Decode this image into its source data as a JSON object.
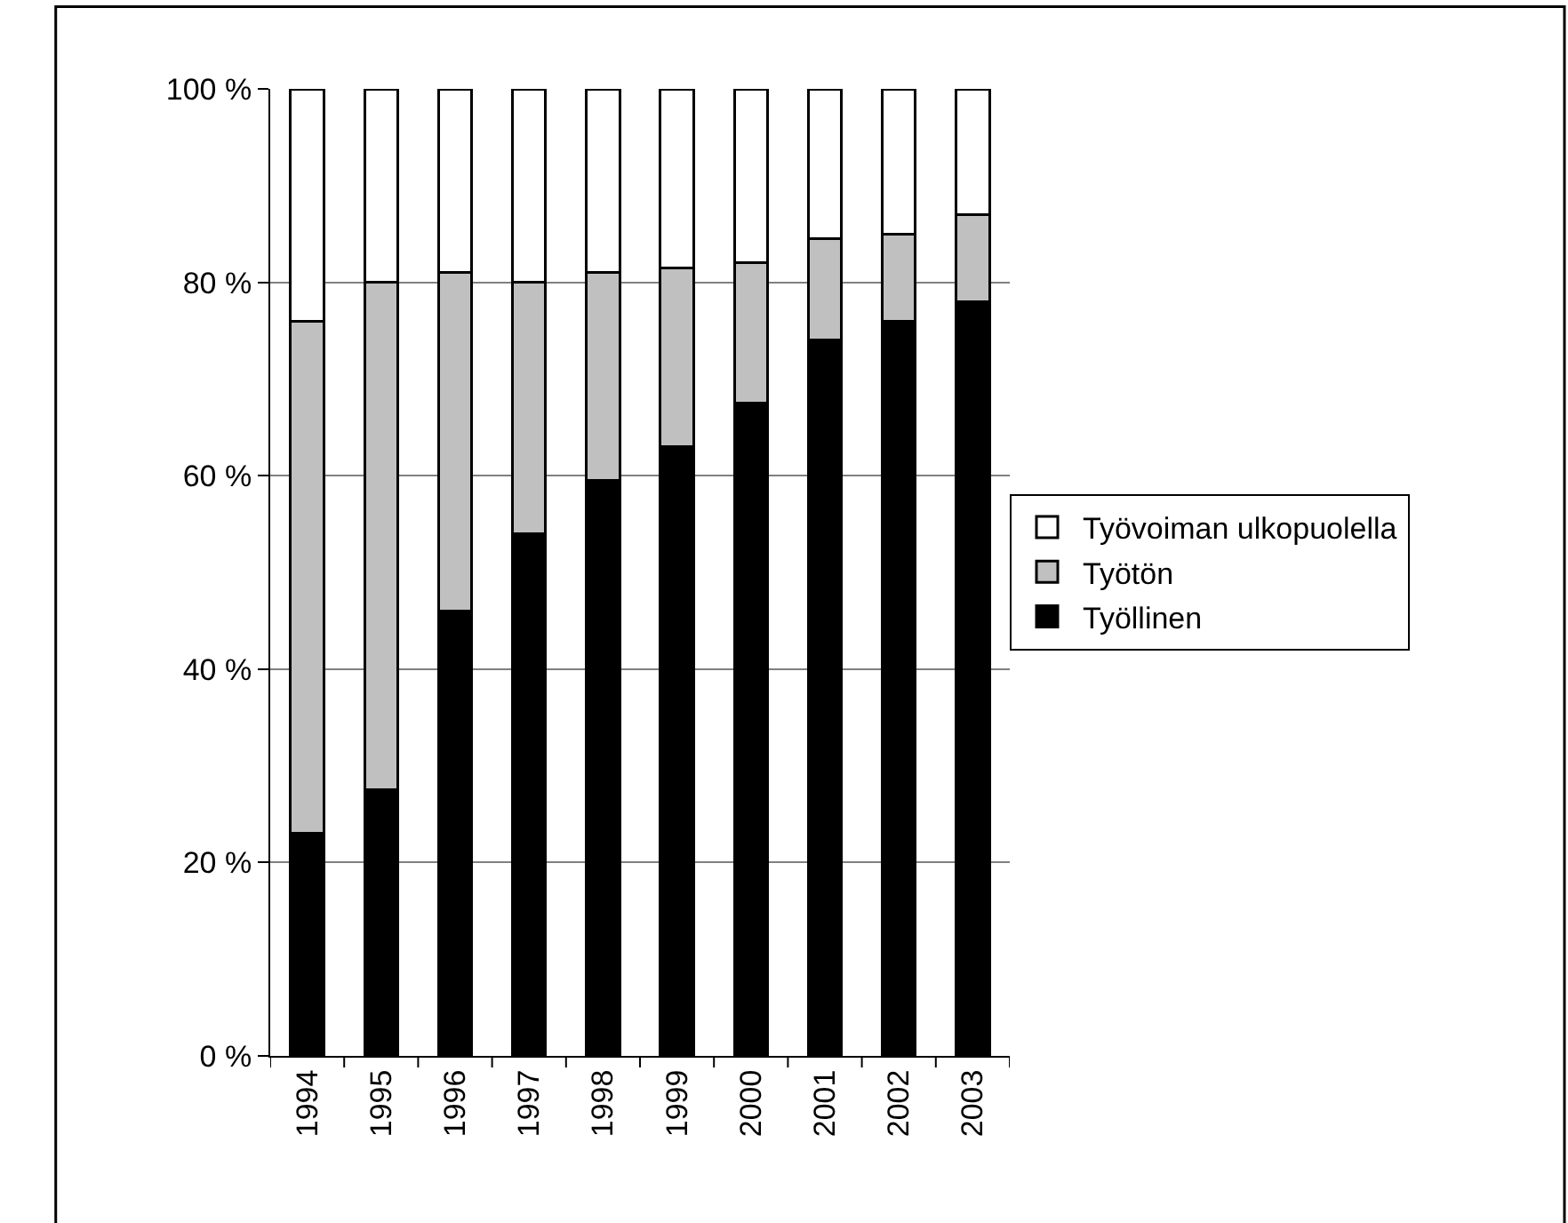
{
  "chart_data": {
    "type": "bar",
    "stacked": true,
    "categories": [
      "1994",
      "1995",
      "1996",
      "1997",
      "1998",
      "1999",
      "2000",
      "2001",
      "2002",
      "2003"
    ],
    "series": [
      {
        "name": "Työllinen",
        "color": "#000000",
        "values": [
          23,
          27.5,
          46,
          54,
          59.5,
          63,
          67.5,
          74,
          76,
          78
        ]
      },
      {
        "name": "Työtön",
        "color": "#c0c0c0",
        "values": [
          53,
          52.5,
          35,
          26,
          21.5,
          18.5,
          14.5,
          10.5,
          9,
          9
        ]
      },
      {
        "name": "Työvoiman ulkopuolella",
        "color": "#ffffff",
        "values": [
          24,
          20,
          19,
          20,
          19,
          18.5,
          18,
          15.5,
          15,
          13
        ]
      }
    ],
    "ylim": [
      0,
      100
    ],
    "yticks": [
      {
        "value": 0,
        "label": "0 %"
      },
      {
        "value": 20,
        "label": "20 %"
      },
      {
        "value": 40,
        "label": "40 %"
      },
      {
        "value": 60,
        "label": "60 %"
      },
      {
        "value": 80,
        "label": "80 %"
      },
      {
        "value": 100,
        "label": "100 %"
      }
    ],
    "grid": "y",
    "legend": "right"
  }
}
